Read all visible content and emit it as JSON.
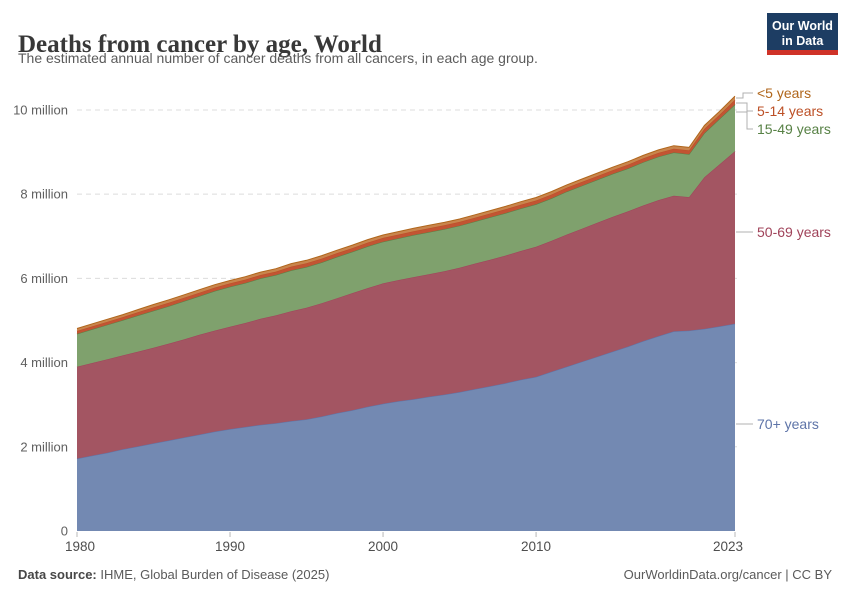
{
  "chart_data": {
    "type": "area",
    "stacked": true,
    "title": "Deaths from cancer by age, World",
    "subtitle": "The estimated annual number of cancer deaths from all cancers, in each age group.",
    "unit": "million",
    "grid": "dashed-horizontal",
    "legend_position": "right",
    "ylim": [
      0,
      10.4
    ],
    "x": [
      1980,
      1981,
      1982,
      1983,
      1984,
      1985,
      1986,
      1987,
      1988,
      1989,
      1990,
      1991,
      1992,
      1993,
      1994,
      1995,
      1996,
      1997,
      1998,
      1999,
      2000,
      2001,
      2002,
      2003,
      2004,
      2005,
      2006,
      2007,
      2008,
      2009,
      2010,
      2011,
      2012,
      2013,
      2014,
      2015,
      2016,
      2017,
      2018,
      2019,
      2020,
      2021,
      2022,
      2023
    ],
    "series": [
      {
        "id": "70-plus",
        "name": "70+ years",
        "color": "#7389b2",
        "label_color": "#5e74a8",
        "values": [
          1.72,
          1.79,
          1.86,
          1.94,
          2.01,
          2.08,
          2.15,
          2.22,
          2.29,
          2.36,
          2.42,
          2.47,
          2.52,
          2.56,
          2.61,
          2.65,
          2.72,
          2.8,
          2.87,
          2.95,
          3.02,
          3.08,
          3.13,
          3.19,
          3.24,
          3.3,
          3.37,
          3.44,
          3.51,
          3.59,
          3.66,
          3.78,
          3.9,
          4.02,
          4.14,
          4.26,
          4.38,
          4.51,
          4.63,
          4.74,
          4.76,
          4.8,
          4.86,
          4.92
        ]
      },
      {
        "id": "50-69",
        "name": "50-69 years",
        "color": "#a35562",
        "label_color": "#a0435a",
        "values": [
          2.18,
          2.2,
          2.22,
          2.23,
          2.25,
          2.27,
          2.3,
          2.33,
          2.37,
          2.4,
          2.43,
          2.47,
          2.52,
          2.56,
          2.61,
          2.65,
          2.69,
          2.73,
          2.78,
          2.82,
          2.86,
          2.88,
          2.9,
          2.91,
          2.93,
          2.95,
          2.98,
          3.0,
          3.03,
          3.06,
          3.09,
          3.11,
          3.14,
          3.16,
          3.18,
          3.2,
          3.21,
          3.22,
          3.23,
          3.22,
          3.17,
          3.6,
          3.85,
          4.1
        ]
      },
      {
        "id": "15-49",
        "name": "15-49 years",
        "color": "#7fa16d",
        "label_color": "#578145",
        "values": [
          0.78,
          0.8,
          0.82,
          0.84,
          0.86,
          0.88,
          0.89,
          0.91,
          0.92,
          0.94,
          0.95,
          0.95,
          0.96,
          0.96,
          0.97,
          0.97,
          0.97,
          0.98,
          0.98,
          0.99,
          0.99,
          0.99,
          1.0,
          1.0,
          1.0,
          1.0,
          1.0,
          1.01,
          1.01,
          1.01,
          1.01,
          1.01,
          1.02,
          1.02,
          1.02,
          1.02,
          1.02,
          1.03,
          1.03,
          1.03,
          1.02,
          1.05,
          1.08,
          1.11
        ]
      },
      {
        "id": "5-14",
        "name": "5-14 years",
        "color": "#c25433",
        "label_color": "#bc4f25",
        "values": [
          0.07,
          0.07,
          0.07,
          0.07,
          0.08,
          0.08,
          0.08,
          0.08,
          0.08,
          0.08,
          0.08,
          0.08,
          0.08,
          0.08,
          0.09,
          0.09,
          0.09,
          0.09,
          0.09,
          0.09,
          0.09,
          0.09,
          0.09,
          0.09,
          0.09,
          0.09,
          0.09,
          0.09,
          0.09,
          0.09,
          0.09,
          0.09,
          0.09,
          0.09,
          0.09,
          0.09,
          0.09,
          0.09,
          0.09,
          0.09,
          0.09,
          0.1,
          0.1,
          0.11
        ]
      },
      {
        "id": "under-5",
        "name": "<5 years",
        "color": "#c9854d",
        "label_color": "#b0661b",
        "values": [
          0.06,
          0.06,
          0.06,
          0.06,
          0.06,
          0.07,
          0.07,
          0.07,
          0.07,
          0.07,
          0.07,
          0.07,
          0.07,
          0.07,
          0.07,
          0.07,
          0.07,
          0.07,
          0.07,
          0.07,
          0.07,
          0.07,
          0.07,
          0.07,
          0.07,
          0.07,
          0.07,
          0.07,
          0.07,
          0.07,
          0.07,
          0.07,
          0.07,
          0.07,
          0.07,
          0.07,
          0.07,
          0.07,
          0.07,
          0.07,
          0.07,
          0.08,
          0.08,
          0.09
        ]
      }
    ],
    "yticks": [
      {
        "value": 0,
        "label": "0"
      },
      {
        "value": 2,
        "label": "2 million"
      },
      {
        "value": 4,
        "label": "4 million"
      },
      {
        "value": 6,
        "label": "6 million"
      },
      {
        "value": 8,
        "label": "8 million"
      },
      {
        "value": 10,
        "label": "10 million"
      }
    ],
    "xticks": [
      {
        "value": 1980,
        "label": "1980"
      },
      {
        "value": 1990,
        "label": "1990"
      },
      {
        "value": 2000,
        "label": "2000"
      },
      {
        "value": 2010,
        "label": "2010"
      },
      {
        "value": 2023,
        "label": "2023"
      }
    ]
  },
  "legend": {
    "items": [
      {
        "id": "under-5",
        "label": "<5 years",
        "color": "#b0661b"
      },
      {
        "id": "5-14",
        "label": "5-14 years",
        "color": "#bc4f25"
      },
      {
        "id": "15-49",
        "label": "15-49 years",
        "color": "#578145"
      },
      {
        "id": "50-69",
        "label": "50-69 years",
        "color": "#a0435a"
      },
      {
        "id": "70-plus",
        "label": "70+ years",
        "color": "#5e74a8"
      }
    ]
  },
  "logo": {
    "line1": "Our World",
    "line2": "in Data",
    "bg_color": "#1d3d63",
    "accent_color": "#cf3228"
  },
  "footer": {
    "source_label": "Data source:",
    "source_text": " IHME, Global Burden of Disease (2025)",
    "attribution": "OurWorldinData.org/cancer | CC BY"
  }
}
